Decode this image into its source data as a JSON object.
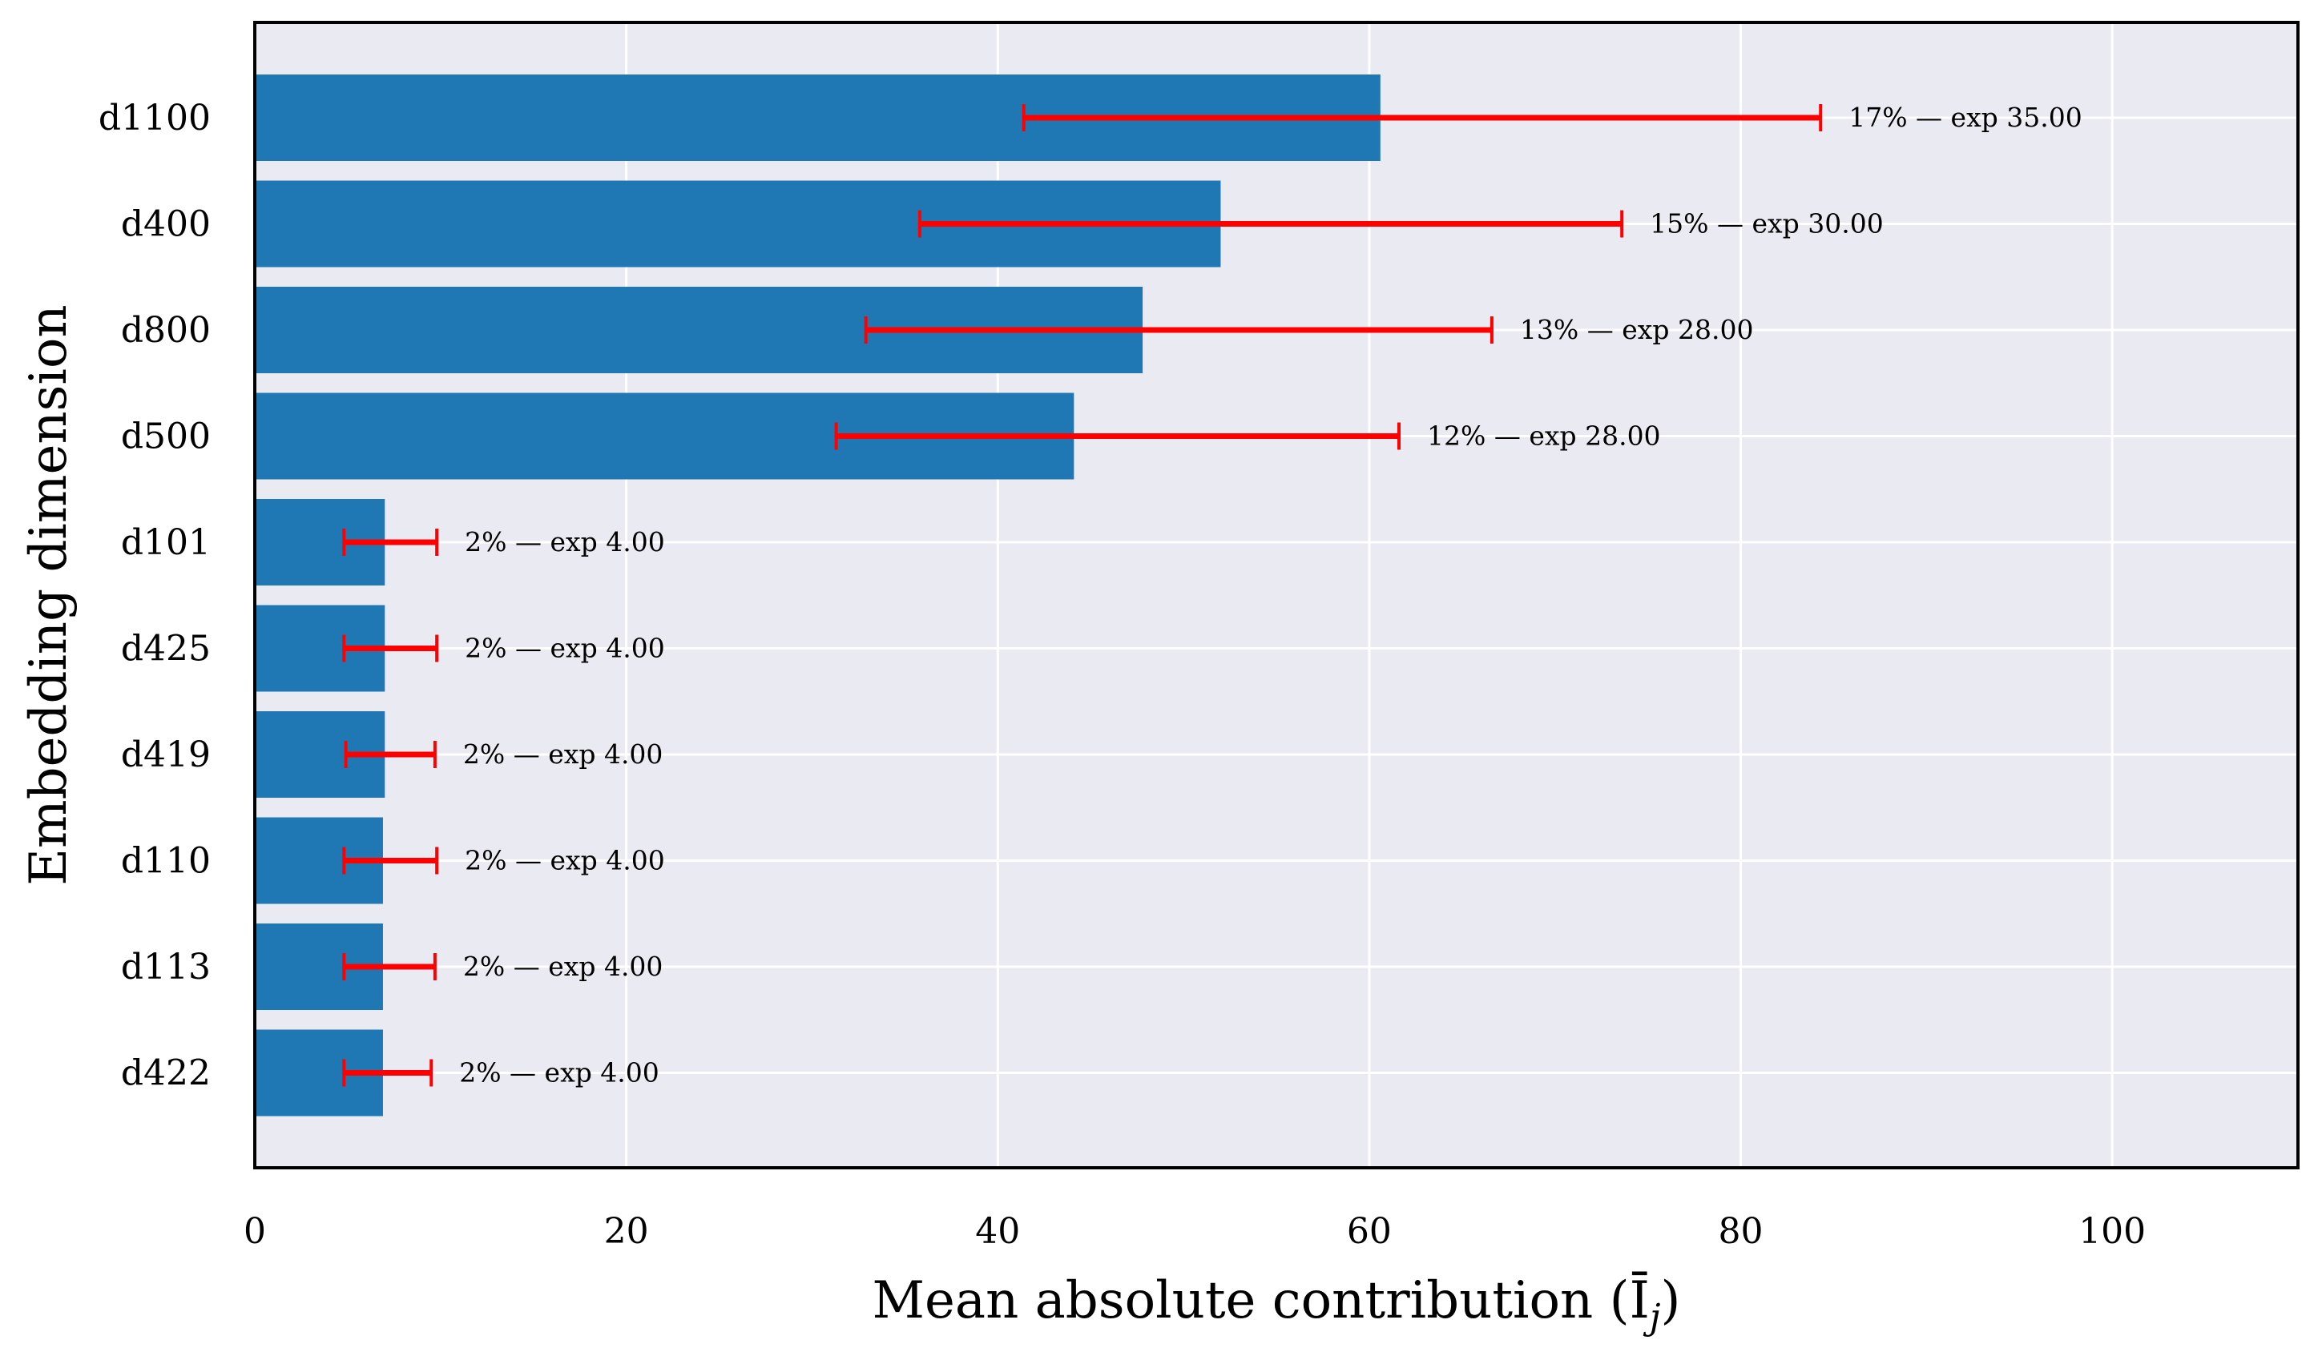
{
  "chart_data": {
    "type": "bar",
    "orientation": "horizontal",
    "xlabel": "Mean absolute contribution (Ī",
    "xlabel_subscript": "j",
    "xlabel_close": ")",
    "ylabel": "Embedding dimension",
    "xlim": [
      0,
      110
    ],
    "xticks": [
      0,
      20,
      40,
      60,
      80,
      100
    ],
    "xtick_labels": [
      "0",
      "20",
      "40",
      "60",
      "80",
      "100"
    ],
    "grid": true,
    "categories": [
      "d1100",
      "d400",
      "d800",
      "d500",
      "d101",
      "d425",
      "d419",
      "d110",
      "d113",
      "d422"
    ],
    "values": [
      60.6,
      52.0,
      47.8,
      44.1,
      7.0,
      7.0,
      7.0,
      6.9,
      6.9,
      6.9
    ],
    "error_low": [
      41.4,
      35.8,
      32.9,
      31.3,
      4.8,
      4.8,
      4.9,
      4.8,
      4.8,
      4.8
    ],
    "error_high": [
      84.3,
      73.6,
      66.6,
      61.6,
      9.8,
      9.8,
      9.7,
      9.8,
      9.7,
      9.5
    ],
    "annotations": [
      "17% — exp 35.00",
      "15% — exp 30.00",
      "13% — exp 28.00",
      "12% — exp 28.00",
      "2% — exp 4.00",
      "2% — exp 4.00",
      "2% — exp 4.00",
      "2% — exp 4.00",
      "2% — exp 4.00",
      "2% — exp 4.00"
    ],
    "bar_color": "#1f77b4",
    "error_color": "#ff0000",
    "plot_background": "#eaeaf2",
    "grid_color": "#ffffff"
  }
}
